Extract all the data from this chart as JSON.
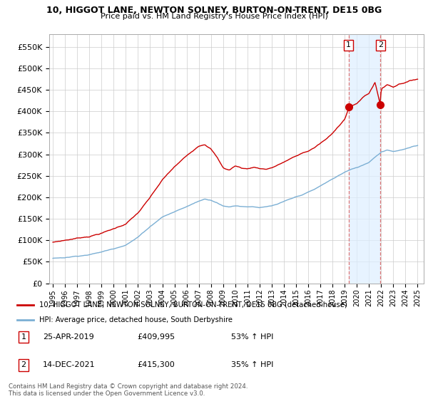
{
  "title1": "10, HIGGOT LANE, NEWTON SOLNEY, BURTON-ON-TRENT, DE15 0BG",
  "title2": "Price paid vs. HM Land Registry's House Price Index (HPI)",
  "ylabel_ticks": [
    "£0",
    "£50K",
    "£100K",
    "£150K",
    "£200K",
    "£250K",
    "£300K",
    "£350K",
    "£400K",
    "£450K",
    "£500K",
    "£550K"
  ],
  "ytick_vals": [
    0,
    50000,
    100000,
    150000,
    200000,
    250000,
    300000,
    350000,
    400000,
    450000,
    500000,
    550000
  ],
  "ylim": [
    0,
    580000
  ],
  "line1_color": "#cc0000",
  "line2_color": "#7bafd4",
  "legend_line1": "10, HIGGOT LANE, NEWTON SOLNEY, BURTON-ON-TRENT, DE15 0BG (detached house)",
  "legend_line2": "HPI: Average price, detached house, South Derbyshire",
  "annotation1_label": "1",
  "annotation1_date": "25-APR-2019",
  "annotation1_price": "£409,995",
  "annotation1_pct": "53% ↑ HPI",
  "annotation2_label": "2",
  "annotation2_date": "14-DEC-2021",
  "annotation2_price": "£415,300",
  "annotation2_pct": "35% ↑ HPI",
  "footnote": "Contains HM Land Registry data © Crown copyright and database right 2024.\nThis data is licensed under the Open Government Licence v3.0.",
  "sale1_year": 2019.32,
  "sale1_price": 409995,
  "sale2_year": 2021.95,
  "sale2_price": 415300,
  "background_color": "#ffffff",
  "grid_color": "#cccccc",
  "shade_color": "#ddeeff"
}
